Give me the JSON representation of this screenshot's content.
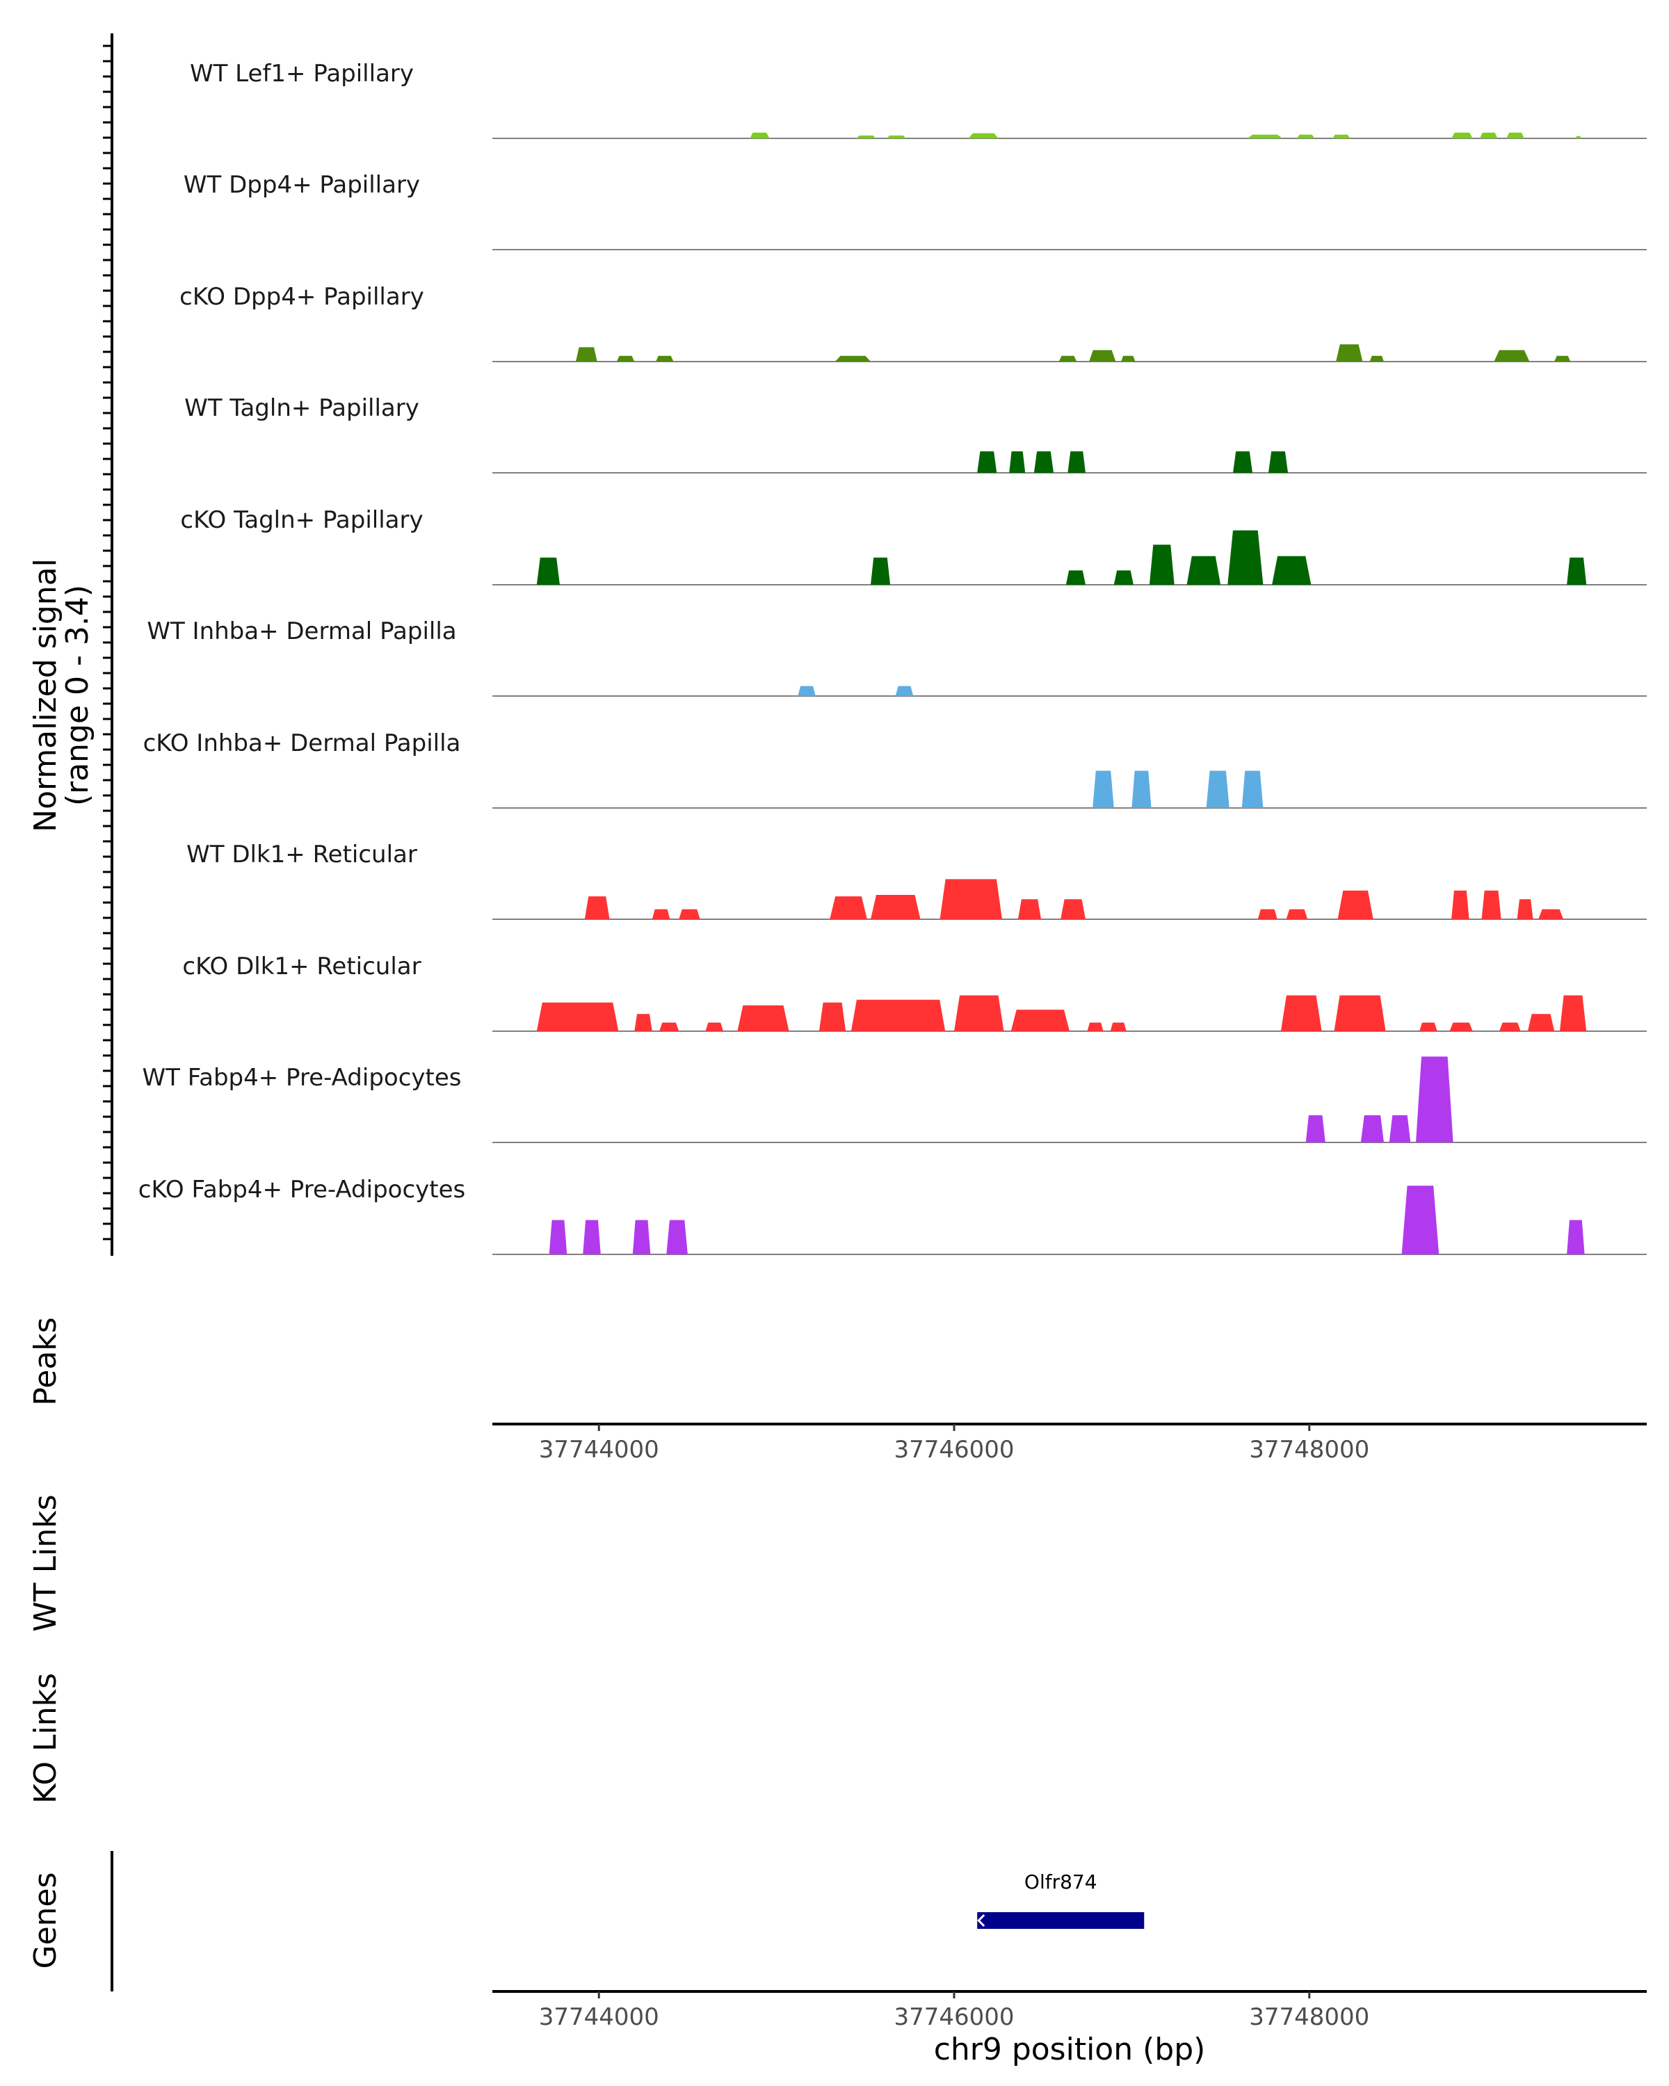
{
  "chart_data": {
    "type": "area",
    "chromosome": "chr9",
    "xlim": [
      37743400,
      37749900
    ],
    "ylim": [
      0,
      3.4
    ],
    "signal_axis_label": "Normalized signal",
    "signal_axis_range_label": "(range 0 - 3.4)",
    "x_ticks": [
      37744000,
      37746000,
      37748000
    ],
    "x_tick_labels": [
      "37744000",
      "37746000",
      "37748000"
    ],
    "xlabel": "chr9 position (bp)",
    "colors": {
      "lef1": "#7CCD1E",
      "dpp4": "#4F8A0B",
      "tagln": "#006400",
      "inhba": "#5DADE2",
      "dlk1": "#FF3333",
      "fabp4": "#B23AEE",
      "baseline": "#808080",
      "gene": "#00008B"
    },
    "tracks": [
      {
        "name": "WT Lef1+ Papillary",
        "color_key": "lef1",
        "peaks": [
          {
            "start": 37744850,
            "end": 37744960,
            "height": 0.2
          },
          {
            "start": 37745450,
            "end": 37745560,
            "height": 0.1
          },
          {
            "start": 37745620,
            "end": 37745730,
            "height": 0.1
          },
          {
            "start": 37746080,
            "end": 37746250,
            "height": 0.18
          },
          {
            "start": 37747650,
            "end": 37747850,
            "height": 0.13
          },
          {
            "start": 37747930,
            "end": 37748030,
            "height": 0.13
          },
          {
            "start": 37748130,
            "end": 37748230,
            "height": 0.13
          },
          {
            "start": 37748800,
            "end": 37748920,
            "height": 0.2
          },
          {
            "start": 37748960,
            "end": 37749060,
            "height": 0.2
          },
          {
            "start": 37749110,
            "end": 37749210,
            "height": 0.2
          },
          {
            "start": 37749500,
            "end": 37749530,
            "height": 0.08
          }
        ]
      },
      {
        "name": "WT Dpp4+ Papillary",
        "color_key": "dpp4",
        "peaks": []
      },
      {
        "name": "cKO Dpp4+ Papillary",
        "color_key": "dpp4",
        "peaks": [
          {
            "start": 37743870,
            "end": 37743990,
            "height": 0.5
          },
          {
            "start": 37744100,
            "end": 37744200,
            "height": 0.2
          },
          {
            "start": 37744320,
            "end": 37744420,
            "height": 0.2
          },
          {
            "start": 37745330,
            "end": 37745530,
            "height": 0.2
          },
          {
            "start": 37746590,
            "end": 37746690,
            "height": 0.2
          },
          {
            "start": 37746760,
            "end": 37746910,
            "height": 0.4
          },
          {
            "start": 37746940,
            "end": 37747020,
            "height": 0.2
          },
          {
            "start": 37748150,
            "end": 37748300,
            "height": 0.6
          },
          {
            "start": 37748340,
            "end": 37748420,
            "height": 0.2
          },
          {
            "start": 37749040,
            "end": 37749240,
            "height": 0.4
          },
          {
            "start": 37749380,
            "end": 37749470,
            "height": 0.2
          }
        ]
      },
      {
        "name": "WT Tagln+ Papillary",
        "color_key": "tagln",
        "peaks": [
          {
            "start": 37746130,
            "end": 37746240,
            "height": 0.75
          },
          {
            "start": 37746310,
            "end": 37746400,
            "height": 0.75
          },
          {
            "start": 37746450,
            "end": 37746560,
            "height": 0.75
          },
          {
            "start": 37746640,
            "end": 37746740,
            "height": 0.75
          },
          {
            "start": 37747570,
            "end": 37747680,
            "height": 0.75
          },
          {
            "start": 37747770,
            "end": 37747880,
            "height": 0.75
          }
        ]
      },
      {
        "name": "cKO Tagln+ Papillary",
        "color_key": "tagln",
        "peaks": [
          {
            "start": 37743650,
            "end": 37743780,
            "height": 0.95
          },
          {
            "start": 37745530,
            "end": 37745640,
            "height": 0.95
          },
          {
            "start": 37746630,
            "end": 37746740,
            "height": 0.5
          },
          {
            "start": 37746900,
            "end": 37747010,
            "height": 0.5
          },
          {
            "start": 37747100,
            "end": 37747240,
            "height": 1.4
          },
          {
            "start": 37747310,
            "end": 37747500,
            "height": 1.0
          },
          {
            "start": 37747540,
            "end": 37747740,
            "height": 1.9
          },
          {
            "start": 37747790,
            "end": 37748010,
            "height": 1.0
          },
          {
            "start": 37749450,
            "end": 37749560,
            "height": 0.95
          }
        ]
      },
      {
        "name": "WT Inhba+ Dermal Papilla",
        "color_key": "inhba",
        "peaks": [
          {
            "start": 37745120,
            "end": 37745220,
            "height": 0.35
          },
          {
            "start": 37745670,
            "end": 37745770,
            "height": 0.35
          }
        ]
      },
      {
        "name": "cKO Inhba+ Dermal Papilla",
        "color_key": "inhba",
        "peaks": [
          {
            "start": 37746780,
            "end": 37746900,
            "height": 1.3
          },
          {
            "start": 37747000,
            "end": 37747110,
            "height": 1.3
          },
          {
            "start": 37747420,
            "end": 37747550,
            "height": 1.3
          },
          {
            "start": 37747620,
            "end": 37747740,
            "height": 1.3
          }
        ]
      },
      {
        "name": "WT Dlk1+ Reticular",
        "color_key": "dlk1",
        "peaks": [
          {
            "start": 37743920,
            "end": 37744060,
            "height": 0.8
          },
          {
            "start": 37744300,
            "end": 37744400,
            "height": 0.35
          },
          {
            "start": 37744450,
            "end": 37744570,
            "height": 0.35
          },
          {
            "start": 37745300,
            "end": 37745510,
            "height": 0.8
          },
          {
            "start": 37745530,
            "end": 37745810,
            "height": 0.85
          },
          {
            "start": 37745920,
            "end": 37746270,
            "height": 1.4
          },
          {
            "start": 37746360,
            "end": 37746490,
            "height": 0.7
          },
          {
            "start": 37746600,
            "end": 37746740,
            "height": 0.7
          },
          {
            "start": 37747710,
            "end": 37747820,
            "height": 0.35
          },
          {
            "start": 37747870,
            "end": 37747990,
            "height": 0.35
          },
          {
            "start": 37748160,
            "end": 37748360,
            "height": 1.0
          },
          {
            "start": 37748800,
            "end": 37748900,
            "height": 1.0
          },
          {
            "start": 37748970,
            "end": 37749080,
            "height": 1.0
          },
          {
            "start": 37749170,
            "end": 37749260,
            "height": 0.7
          },
          {
            "start": 37749290,
            "end": 37749430,
            "height": 0.35
          }
        ]
      },
      {
        "name": "cKO Dlk1+ Reticular",
        "color_key": "dlk1",
        "peaks": [
          {
            "start": 37743650,
            "end": 37744110,
            "height": 1.0
          },
          {
            "start": 37744200,
            "end": 37744300,
            "height": 0.6
          },
          {
            "start": 37744340,
            "end": 37744450,
            "height": 0.3
          },
          {
            "start": 37744600,
            "end": 37744700,
            "height": 0.3
          },
          {
            "start": 37744780,
            "end": 37745070,
            "height": 0.9
          },
          {
            "start": 37745240,
            "end": 37745390,
            "height": 1.0
          },
          {
            "start": 37745420,
            "end": 37745950,
            "height": 1.1
          },
          {
            "start": 37746000,
            "end": 37746280,
            "height": 1.25
          },
          {
            "start": 37746320,
            "end": 37746650,
            "height": 0.75
          },
          {
            "start": 37746750,
            "end": 37746840,
            "height": 0.3
          },
          {
            "start": 37746880,
            "end": 37746970,
            "height": 0.3
          },
          {
            "start": 37747840,
            "end": 37748070,
            "height": 1.25
          },
          {
            "start": 37748140,
            "end": 37748430,
            "height": 1.25
          },
          {
            "start": 37748620,
            "end": 37748720,
            "height": 0.3
          },
          {
            "start": 37748790,
            "end": 37748920,
            "height": 0.3
          },
          {
            "start": 37749070,
            "end": 37749190,
            "height": 0.3
          },
          {
            "start": 37749230,
            "end": 37749380,
            "height": 0.6
          },
          {
            "start": 37749410,
            "end": 37749560,
            "height": 1.25
          }
        ]
      },
      {
        "name": "WT Fabp4+ Pre-Adipocytes",
        "color_key": "fabp4",
        "peaks": [
          {
            "start": 37747980,
            "end": 37748090,
            "height": 0.95
          },
          {
            "start": 37748290,
            "end": 37748420,
            "height": 0.95
          },
          {
            "start": 37748450,
            "end": 37748570,
            "height": 0.95
          },
          {
            "start": 37748600,
            "end": 37748810,
            "height": 3.0
          }
        ]
      },
      {
        "name": "cKO Fabp4+ Pre-Adipocytes",
        "color_key": "fabp4",
        "peaks": [
          {
            "start": 37743720,
            "end": 37743820,
            "height": 1.2
          },
          {
            "start": 37743910,
            "end": 37744010,
            "height": 1.2
          },
          {
            "start": 37744190,
            "end": 37744290,
            "height": 1.2
          },
          {
            "start": 37744380,
            "end": 37744500,
            "height": 1.2
          },
          {
            "start": 37748520,
            "end": 37748730,
            "height": 2.4
          },
          {
            "start": 37749450,
            "end": 37749550,
            "height": 1.2
          }
        ]
      }
    ],
    "empty_panels": [
      "Peaks",
      "WT Links",
      "KO Links"
    ],
    "genes_panel_label": "Genes",
    "genes": [
      {
        "name": "Olfr874",
        "start": 37746130,
        "end": 37747070,
        "strand": "-"
      }
    ]
  }
}
